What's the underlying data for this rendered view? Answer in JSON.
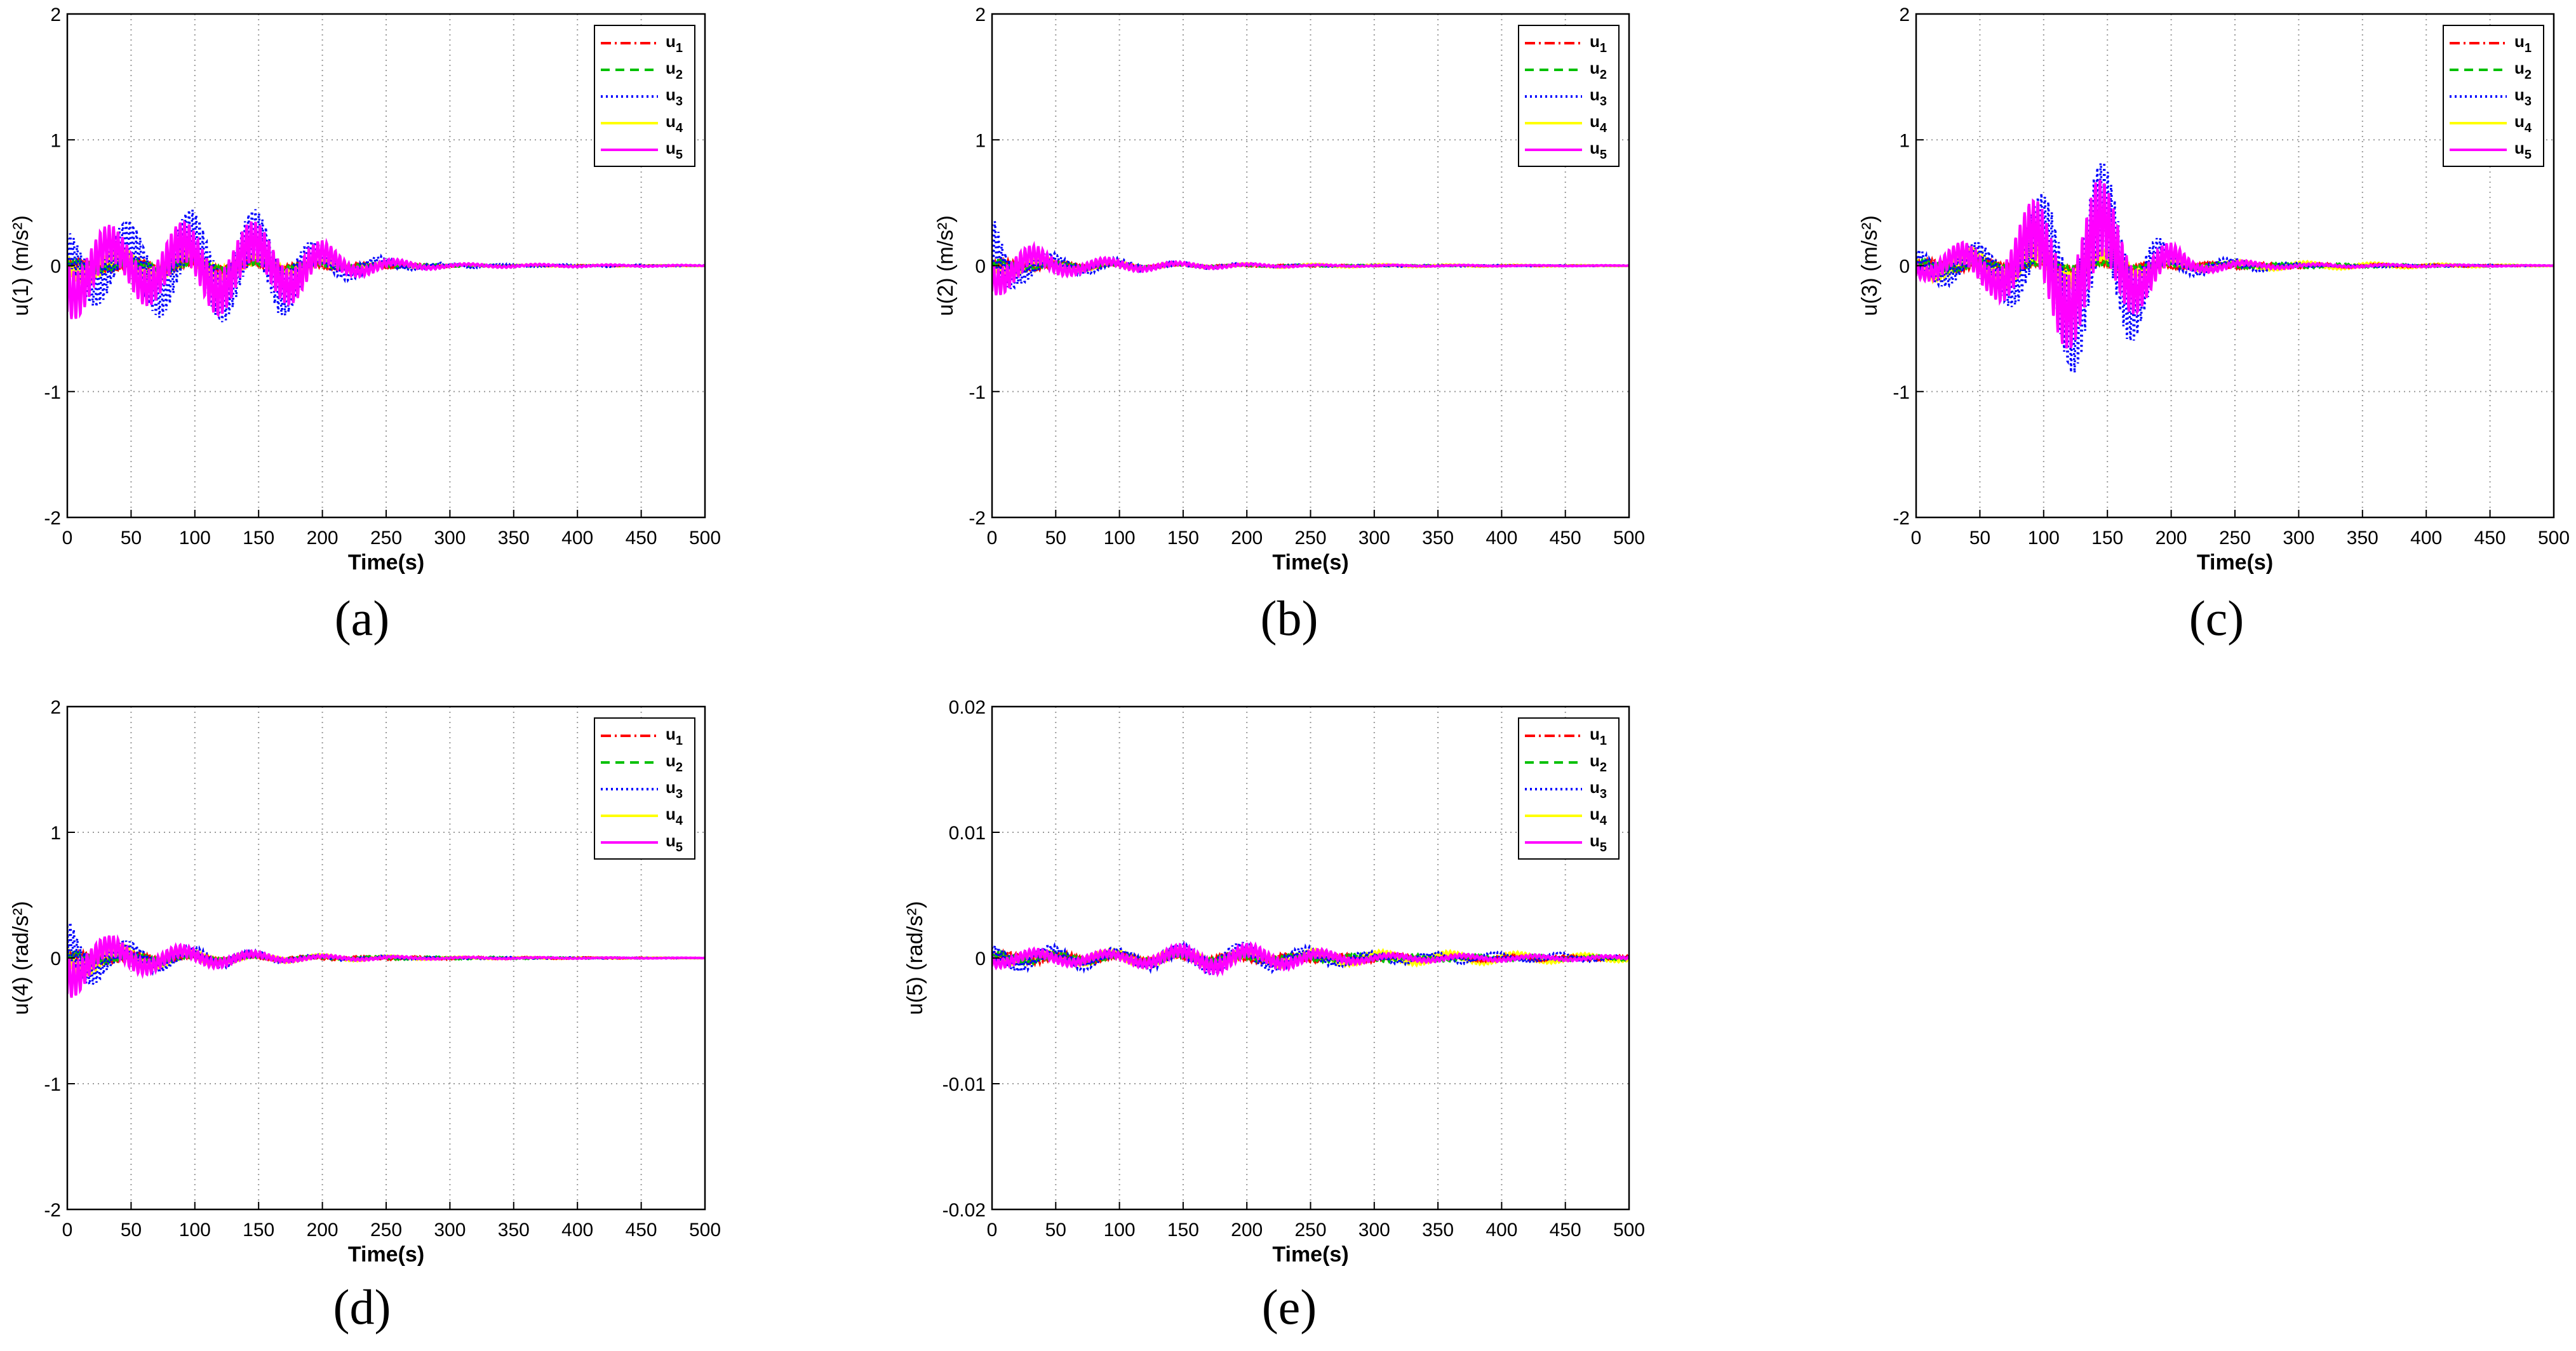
{
  "figure": {
    "panels": [
      {
        "id": "a",
        "label": "(a)"
      },
      {
        "id": "b",
        "label": "(b)"
      },
      {
        "id": "c",
        "label": "(c)"
      },
      {
        "id": "d",
        "label": "(d)"
      },
      {
        "id": "e",
        "label": "(e)"
      }
    ]
  },
  "chart_data": [
    {
      "id": "a",
      "type": "line",
      "title": "",
      "xlabel": "Time(s)",
      "ylabel": "u(1) (m/s²)",
      "xlim": [
        0,
        500
      ],
      "ylim": [
        -2,
        2
      ],
      "xticks": [
        0,
        50,
        100,
        150,
        200,
        250,
        300,
        350,
        400,
        450,
        500
      ],
      "yticks": [
        -2,
        -1,
        0,
        1,
        2
      ],
      "ytick_labels": [
        "-2",
        "-1",
        "0",
        "1",
        "2"
      ],
      "grid": true,
      "legend_position": "top-right",
      "legend": [
        "u1",
        "u2",
        "u3",
        "u4",
        "u5"
      ],
      "series": [
        {
          "name": "u1",
          "color": "#ff0000",
          "style": "dashdot",
          "envelope": [
            [
              0,
              0.05
            ],
            [
              100,
              0.05
            ],
            [
              200,
              0.03
            ],
            [
              300,
              0.01
            ],
            [
              500,
              0.002
            ]
          ]
        },
        {
          "name": "u2",
          "color": "#00c000",
          "style": "dashed",
          "envelope": [
            [
              0,
              0.05
            ],
            [
              100,
              0.05
            ],
            [
              200,
              0.03
            ],
            [
              300,
              0.01
            ],
            [
              500,
              0.002
            ]
          ]
        },
        {
          "name": "u3",
          "color": "#0000ff",
          "style": "dotted",
          "envelope": [
            [
              0,
              0.3
            ],
            [
              40,
              0.35
            ],
            [
              90,
              0.45
            ],
            [
              120,
              0.45
            ],
            [
              165,
              0.45
            ],
            [
              200,
              0.15
            ],
            [
              260,
              0.05
            ],
            [
              300,
              0.02
            ],
            [
              500,
              0.005
            ]
          ]
        },
        {
          "name": "u4",
          "color": "#ffff00",
          "style": "solid",
          "envelope": [
            [
              0,
              0.15
            ],
            [
              50,
              0.12
            ],
            [
              100,
              0.12
            ],
            [
              200,
              0.06
            ],
            [
              300,
              0.01
            ],
            [
              500,
              0.003
            ]
          ]
        },
        {
          "name": "u5",
          "color": "#ff00ff",
          "style": "solid",
          "envelope": [
            [
              0,
              0.45
            ],
            [
              40,
              0.3
            ],
            [
              90,
              0.35
            ],
            [
              120,
              0.4
            ],
            [
              180,
              0.3
            ],
            [
              220,
              0.1
            ],
            [
              260,
              0.05
            ],
            [
              300,
              0.02
            ],
            [
              500,
              0.005
            ]
          ]
        }
      ]
    },
    {
      "id": "b",
      "type": "line",
      "title": "",
      "xlabel": "Time(s)",
      "ylabel": "u(2) (m/s²)",
      "xlim": [
        0,
        500
      ],
      "ylim": [
        -2,
        2
      ],
      "xticks": [
        0,
        50,
        100,
        150,
        200,
        250,
        300,
        350,
        400,
        450,
        500
      ],
      "yticks": [
        -2,
        -1,
        0,
        1,
        2
      ],
      "ytick_labels": [
        "-2",
        "-1",
        "0",
        "1",
        "2"
      ],
      "grid": true,
      "legend_position": "top-right",
      "legend": [
        "u1",
        "u2",
        "u3",
        "u4",
        "u5"
      ],
      "series": [
        {
          "name": "u1",
          "color": "#ff0000",
          "style": "dashdot",
          "envelope": [
            [
              0,
              0.05
            ],
            [
              50,
              0.03
            ],
            [
              150,
              0.01
            ],
            [
              500,
              0.002
            ]
          ]
        },
        {
          "name": "u2",
          "color": "#00c000",
          "style": "dashed",
          "envelope": [
            [
              0,
              0.05
            ],
            [
              50,
              0.03
            ],
            [
              150,
              0.01
            ],
            [
              500,
              0.002
            ]
          ]
        },
        {
          "name": "u3",
          "color": "#0000ff",
          "style": "dotted",
          "envelope": [
            [
              0,
              0.45
            ],
            [
              20,
              0.15
            ],
            [
              60,
              0.08
            ],
            [
              150,
              0.03
            ],
            [
              250,
              0.01
            ],
            [
              500,
              0.003
            ]
          ]
        },
        {
          "name": "u4",
          "color": "#ffff00",
          "style": "solid",
          "envelope": [
            [
              0,
              0.08
            ],
            [
              50,
              0.06
            ],
            [
              150,
              0.02
            ],
            [
              500,
              0.003
            ]
          ]
        },
        {
          "name": "u5",
          "color": "#ff00ff",
          "style": "solid",
          "envelope": [
            [
              0,
              0.25
            ],
            [
              20,
              0.2
            ],
            [
              60,
              0.08
            ],
            [
              150,
              0.03
            ],
            [
              250,
              0.01
            ],
            [
              500,
              0.003
            ]
          ]
        }
      ]
    },
    {
      "id": "c",
      "type": "line",
      "title": "",
      "xlabel": "Time(s)",
      "ylabel": "u(3) (m/s²)",
      "xlim": [
        0,
        500
      ],
      "ylim": [
        -2,
        2
      ],
      "xticks": [
        0,
        50,
        100,
        150,
        200,
        250,
        300,
        350,
        400,
        450,
        500
      ],
      "yticks": [
        -2,
        -1,
        0,
        1,
        2
      ],
      "ytick_labels": [
        "-2",
        "-1",
        "0",
        "1",
        "2"
      ],
      "grid": true,
      "legend_position": "top-right",
      "legend": [
        "u1",
        "u2",
        "u3",
        "u4",
        "u5"
      ],
      "series": [
        {
          "name": "u1",
          "color": "#ff0000",
          "style": "dashdot",
          "envelope": [
            [
              0,
              0.05
            ],
            [
              200,
              0.03
            ],
            [
              500,
              0.002
            ]
          ]
        },
        {
          "name": "u2",
          "color": "#00c000",
          "style": "dashed",
          "envelope": [
            [
              0,
              0.05
            ],
            [
              200,
              0.03
            ],
            [
              500,
              0.002
            ]
          ]
        },
        {
          "name": "u3",
          "color": "#0000ff",
          "style": "dotted",
          "envelope": [
            [
              0,
              0.15
            ],
            [
              60,
              0.2
            ],
            [
              100,
              0.6
            ],
            [
              130,
              0.95
            ],
            [
              165,
              0.7
            ],
            [
              200,
              0.1
            ],
            [
              260,
              0.05
            ],
            [
              300,
              0.02
            ],
            [
              500,
              0.003
            ]
          ]
        },
        {
          "name": "u4",
          "color": "#ffff00",
          "style": "solid",
          "envelope": [
            [
              0,
              0.1
            ],
            [
              50,
              0.15
            ],
            [
              100,
              0.2
            ],
            [
              200,
              0.05
            ],
            [
              500,
              0.003
            ]
          ]
        },
        {
          "name": "u5",
          "color": "#ff00ff",
          "style": "solid",
          "envelope": [
            [
              0,
              0.1
            ],
            [
              60,
              0.25
            ],
            [
              100,
              0.6
            ],
            [
              140,
              0.75
            ],
            [
              180,
              0.3
            ],
            [
              220,
              0.06
            ],
            [
              300,
              0.02
            ],
            [
              500,
              0.003
            ]
          ]
        }
      ]
    },
    {
      "id": "d",
      "type": "line",
      "title": "",
      "xlabel": "Time(s)",
      "ylabel": "u(4) (rad/s²)",
      "xlim": [
        0,
        500
      ],
      "ylim": [
        -2,
        2
      ],
      "xticks": [
        0,
        50,
        100,
        150,
        200,
        250,
        300,
        350,
        400,
        450,
        500
      ],
      "yticks": [
        -2,
        -1,
        0,
        1,
        2
      ],
      "ytick_labels": [
        "-2",
        "-1",
        "0",
        "1",
        "2"
      ],
      "grid": true,
      "legend_position": "top-right",
      "legend": [
        "u1",
        "u2",
        "u3",
        "u4",
        "u5"
      ],
      "series": [
        {
          "name": "u1",
          "color": "#ff0000",
          "style": "dashdot",
          "envelope": [
            [
              0,
              0.05
            ],
            [
              150,
              0.02
            ],
            [
              500,
              0.002
            ]
          ]
        },
        {
          "name": "u2",
          "color": "#00c000",
          "style": "dashed",
          "envelope": [
            [
              0,
              0.05
            ],
            [
              150,
              0.02
            ],
            [
              500,
              0.002
            ]
          ]
        },
        {
          "name": "u3",
          "color": "#0000ff",
          "style": "dotted",
          "envelope": [
            [
              0,
              0.35
            ],
            [
              30,
              0.15
            ],
            [
              70,
              0.12
            ],
            [
              130,
              0.07
            ],
            [
              180,
              0.03
            ],
            [
              300,
              0.01
            ],
            [
              500,
              0.002
            ]
          ]
        },
        {
          "name": "u4",
          "color": "#ffff00",
          "style": "solid",
          "envelope": [
            [
              0,
              0.15
            ],
            [
              50,
              0.1
            ],
            [
              150,
              0.04
            ],
            [
              300,
              0.01
            ],
            [
              500,
              0.002
            ]
          ]
        },
        {
          "name": "u5",
          "color": "#ff00ff",
          "style": "solid",
          "envelope": [
            [
              0,
              0.35
            ],
            [
              20,
              0.2
            ],
            [
              70,
              0.12
            ],
            [
              130,
              0.07
            ],
            [
              180,
              0.03
            ],
            [
              300,
              0.01
            ],
            [
              500,
              0.002
            ]
          ]
        }
      ]
    },
    {
      "id": "e",
      "type": "line",
      "title": "",
      "xlabel": "Time(s)",
      "ylabel": "u(5)  (rad/s²)",
      "xlim": [
        0,
        500
      ],
      "ylim": [
        -0.02,
        0.02
      ],
      "xticks": [
        0,
        50,
        100,
        150,
        200,
        250,
        300,
        350,
        400,
        450,
        500
      ],
      "yticks": [
        -0.02,
        -0.01,
        0,
        0.01,
        0.02
      ],
      "ytick_labels": [
        "-0.02",
        "-0.01",
        "0",
        "0.01",
        "0.02"
      ],
      "grid": true,
      "legend_position": "top-right",
      "legend": [
        "u1",
        "u2",
        "u3",
        "u4",
        "u5"
      ],
      "series": [
        {
          "name": "u1",
          "color": "#ff0000",
          "style": "dashdot",
          "envelope": [
            [
              0,
              0.0005
            ],
            [
              500,
              0.0002
            ]
          ]
        },
        {
          "name": "u2",
          "color": "#00c000",
          "style": "dashed",
          "envelope": [
            [
              0,
              0.0005
            ],
            [
              500,
              0.0002
            ]
          ]
        },
        {
          "name": "u3",
          "color": "#0000ff",
          "style": "dotted",
          "envelope": [
            [
              0,
              0.0012
            ],
            [
              100,
              0.0008
            ],
            [
              150,
              0.0012
            ],
            [
              180,
              0.0014
            ],
            [
              230,
              0.001
            ],
            [
              300,
              0.0005
            ],
            [
              450,
              0.0004
            ],
            [
              500,
              0.0002
            ]
          ]
        },
        {
          "name": "u4",
          "color": "#ffff00",
          "style": "solid",
          "envelope": [
            [
              0,
              0.0005
            ],
            [
              150,
              0.0008
            ],
            [
              300,
              0.0006
            ],
            [
              400,
              0.0005
            ],
            [
              500,
              0.0003
            ]
          ]
        },
        {
          "name": "u5",
          "color": "#ff00ff",
          "style": "solid",
          "envelope": [
            [
              0,
              0.0008
            ],
            [
              100,
              0.0006
            ],
            [
              150,
              0.0011
            ],
            [
              180,
              0.0013
            ],
            [
              230,
              0.0009
            ],
            [
              300,
              0.0004
            ],
            [
              500,
              0.0002
            ]
          ]
        }
      ]
    }
  ]
}
